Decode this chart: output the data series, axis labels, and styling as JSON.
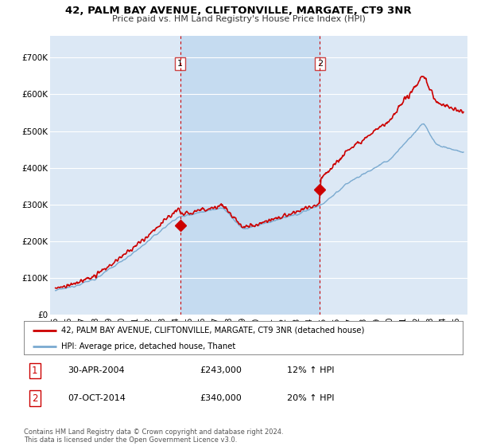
{
  "title": "42, PALM BAY AVENUE, CLIFTONVILLE, MARGATE, CT9 3NR",
  "subtitle": "Price paid vs. HM Land Registry's House Price Index (HPI)",
  "ylabel_ticks": [
    "£0",
    "£100K",
    "£200K",
    "£300K",
    "£400K",
    "£500K",
    "£600K",
    "£700K"
  ],
  "ytick_vals": [
    0,
    100000,
    200000,
    300000,
    400000,
    500000,
    600000,
    700000
  ],
  "ylim": [
    0,
    760000
  ],
  "xlim_start": 1994.6,
  "xlim_end": 2025.8,
  "sale1_x": 2004.33,
  "sale1_y": 243000,
  "sale1_label": "1",
  "sale1_date": "30-APR-2004",
  "sale1_price": "£243,000",
  "sale1_hpi": "12% ↑ HPI",
  "sale2_x": 2014.77,
  "sale2_y": 340000,
  "sale2_label": "2",
  "sale2_date": "07-OCT-2014",
  "sale2_price": "£340,000",
  "sale2_hpi": "20% ↑ HPI",
  "legend_line1": "42, PALM BAY AVENUE, CLIFTONVILLE, MARGATE, CT9 3NR (detached house)",
  "legend_line2": "HPI: Average price, detached house, Thanet",
  "footer": "Contains HM Land Registry data © Crown copyright and database right 2024.\nThis data is licensed under the Open Government Licence v3.0.",
  "price_line_color": "#cc0000",
  "hpi_line_color": "#7aaad0",
  "plot_bg_color": "#dce8f5",
  "highlight_bg_color": "#c5dbf0",
  "grid_color": "#ffffff",
  "dashed_line_color": "#cc0000",
  "xtick_labels": [
    "95",
    "96",
    "97",
    "98",
    "99",
    "00",
    "01",
    "02",
    "03",
    "04",
    "05",
    "06",
    "07",
    "08",
    "09",
    "10",
    "11",
    "12",
    "13",
    "14",
    "15",
    "16",
    "17",
    "18",
    "19",
    "20",
    "21",
    "22",
    "23",
    "24",
    "25"
  ],
  "xtick_years": [
    1995,
    1996,
    1997,
    1998,
    1999,
    2000,
    2001,
    2002,
    2003,
    2004,
    2005,
    2006,
    2007,
    2008,
    2009,
    2010,
    2011,
    2012,
    2013,
    2014,
    2015,
    2016,
    2017,
    2018,
    2019,
    2020,
    2021,
    2022,
    2023,
    2024,
    2025
  ]
}
